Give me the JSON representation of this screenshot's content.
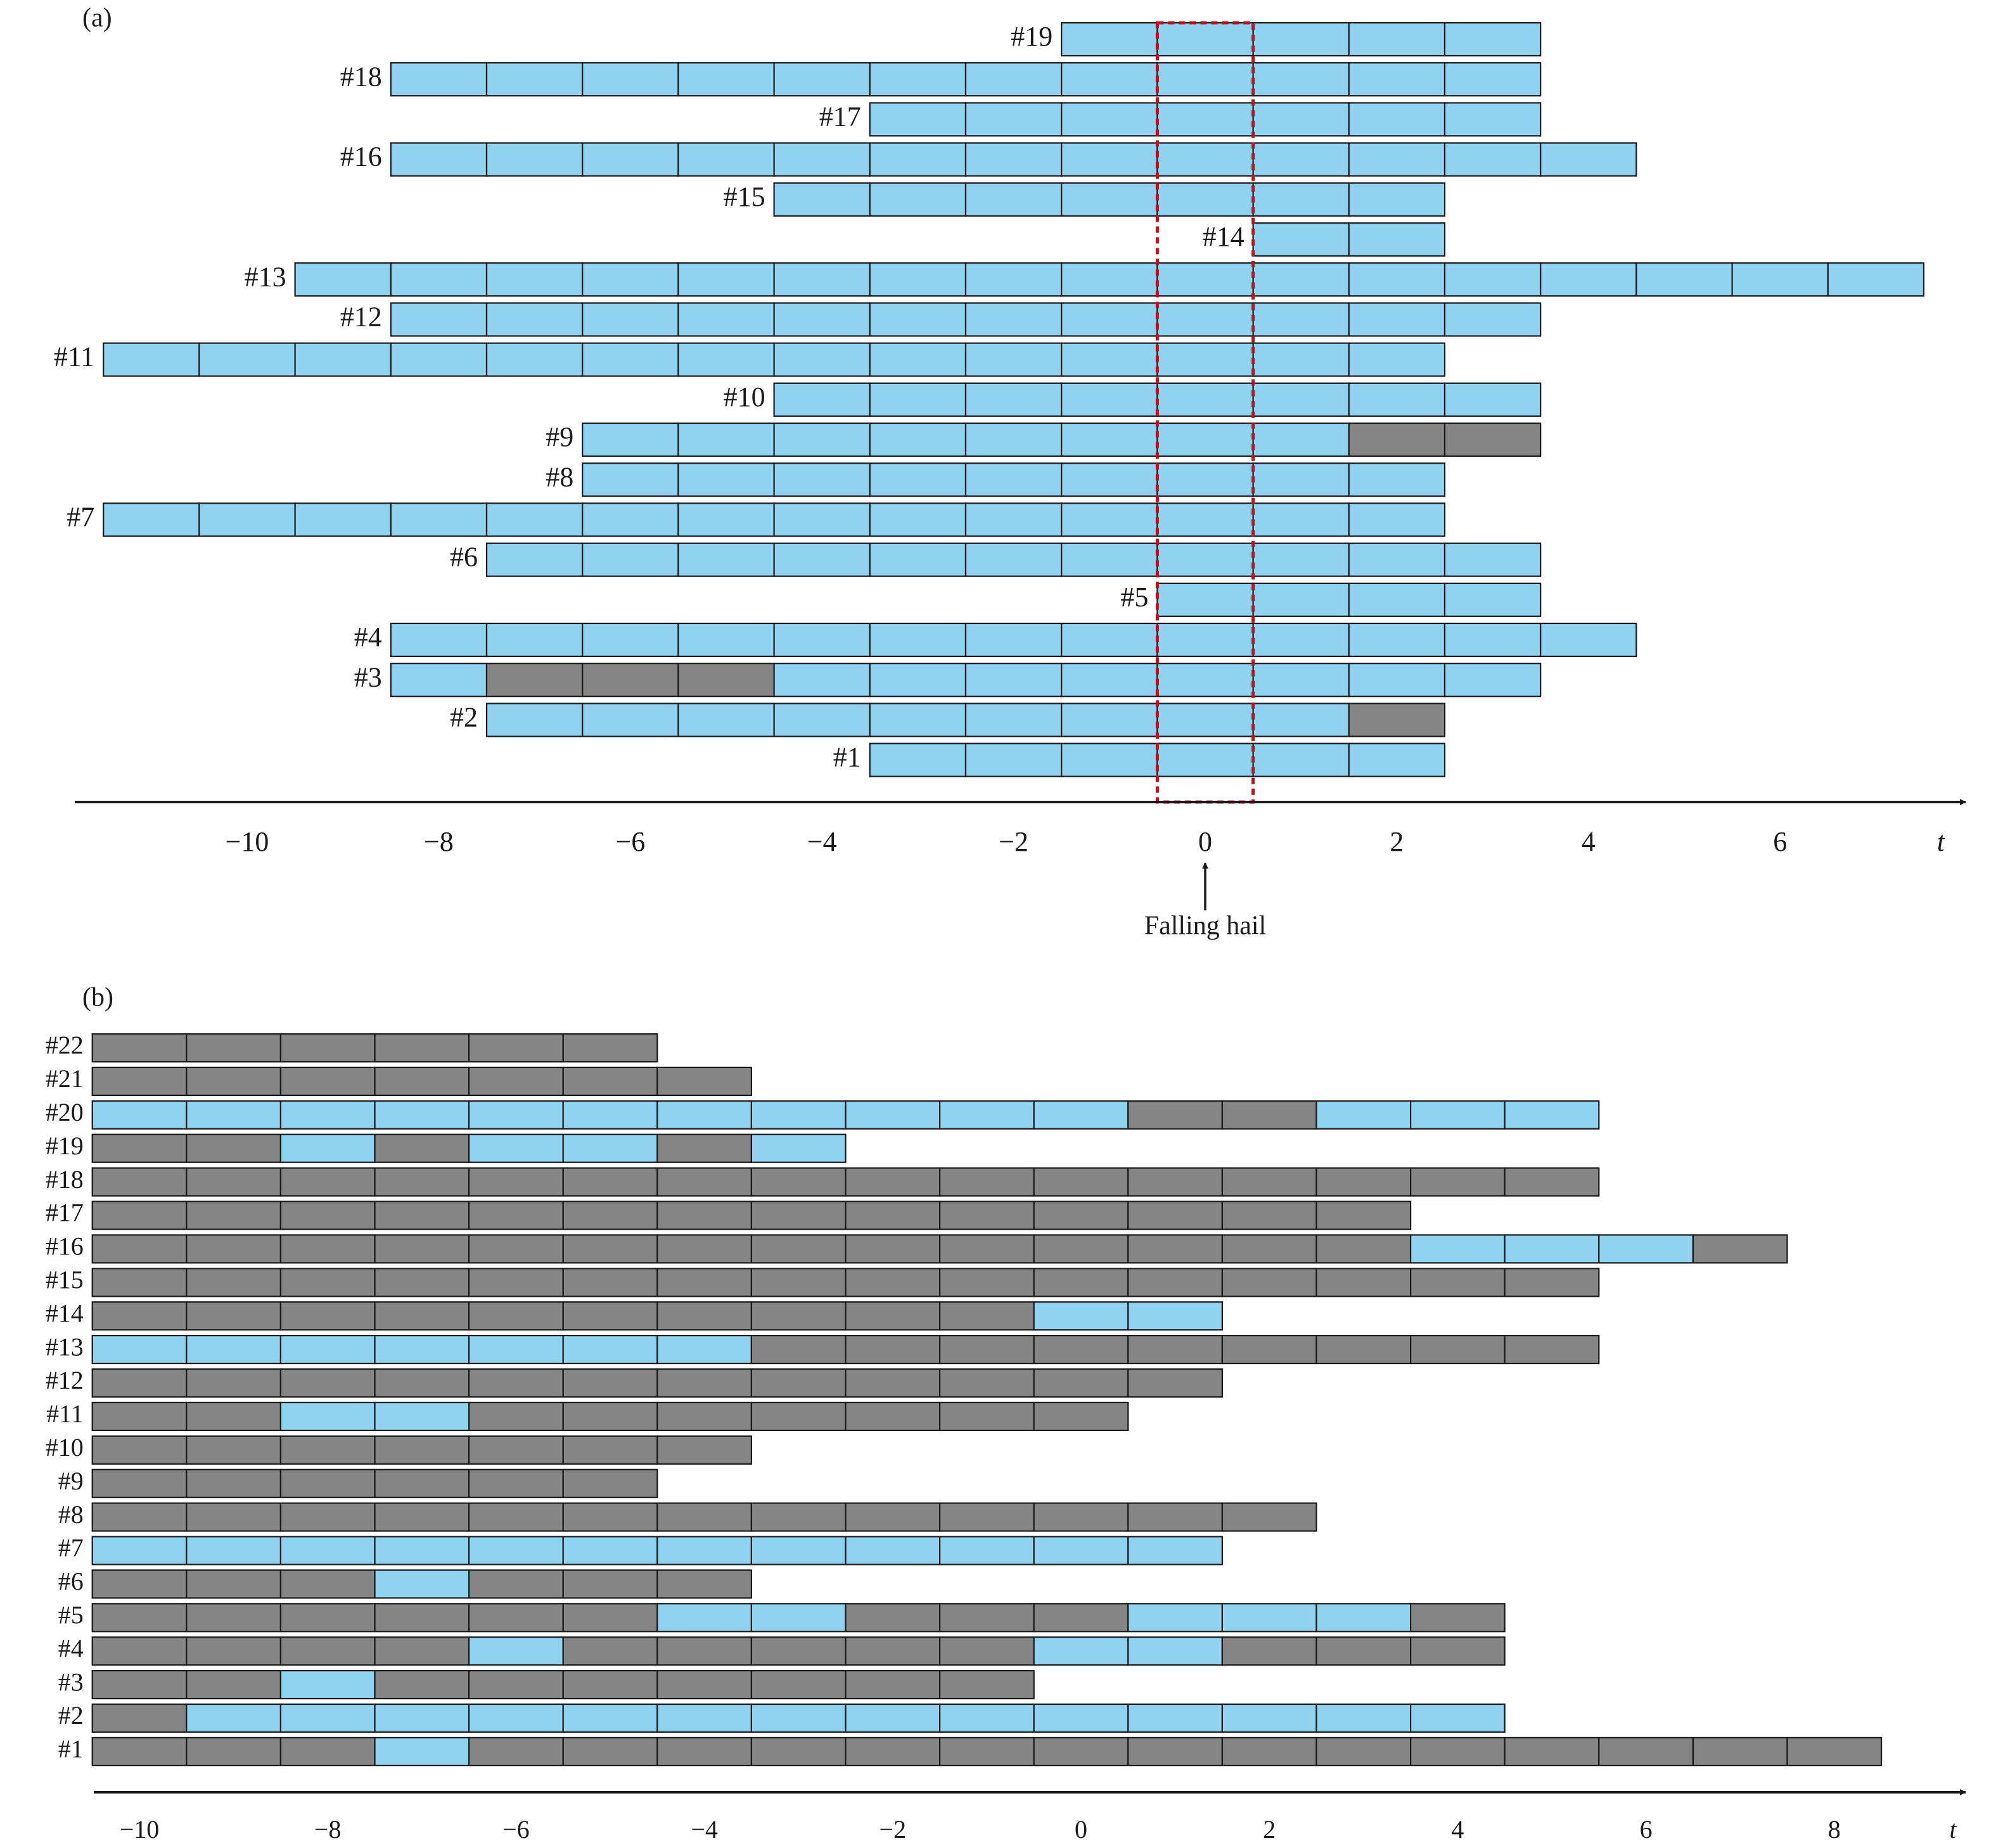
{
  "colors": {
    "light_cell": "#90d2ef",
    "dark_cell": "#858585",
    "cell_border": "#1a1a1a",
    "axis": "#1a1a1a",
    "highlight_box": "#c0101c"
  },
  "chart_data": [
    {
      "panel_label": "(a)",
      "type": "gantt",
      "x_axis": {
        "label": "t",
        "ticks": [
          -10,
          -8,
          -6,
          -4,
          -2,
          0,
          2,
          4,
          6
        ],
        "tick_labels": [
          "−10",
          "−8",
          "−6",
          "−4",
          "−2",
          "0",
          "2",
          "4",
          "6"
        ],
        "range": [
          -11.9,
          8.5
        ]
      },
      "highlight_window": {
        "from": -0.5,
        "to": 0.5
      },
      "annotation": {
        "text": "Falling hail",
        "x": 0
      },
      "tracks": [
        {
          "label": "#19",
          "start": -1.5,
          "cells": [
            "L",
            "L",
            "L",
            "L",
            "L"
          ]
        },
        {
          "label": "#18",
          "start": -8.5,
          "cells": [
            "L",
            "L",
            "L",
            "L",
            "L",
            "L",
            "L",
            "L",
            "L",
            "L",
            "L",
            "L"
          ]
        },
        {
          "label": "#17",
          "start": -3.5,
          "cells": [
            "L",
            "L",
            "L",
            "L",
            "L",
            "L",
            "L"
          ]
        },
        {
          "label": "#16",
          "start": -8.5,
          "cells": [
            "L",
            "L",
            "L",
            "L",
            "L",
            "L",
            "L",
            "L",
            "L",
            "L",
            "L",
            "L",
            "L"
          ]
        },
        {
          "label": "#15",
          "start": -4.5,
          "cells": [
            "L",
            "L",
            "L",
            "L",
            "L",
            "L",
            "L"
          ]
        },
        {
          "label": "#14",
          "start": 0.5,
          "cells": [
            "L",
            "L"
          ]
        },
        {
          "label": "#13",
          "start": -9.5,
          "cells": [
            "L",
            "L",
            "L",
            "L",
            "L",
            "L",
            "L",
            "L",
            "L",
            "L",
            "L",
            "L",
            "L",
            "L",
            "L",
            "L",
            "L"
          ]
        },
        {
          "label": "#12",
          "start": -8.5,
          "cells": [
            "L",
            "L",
            "L",
            "L",
            "L",
            "L",
            "L",
            "L",
            "L",
            "L",
            "L",
            "L"
          ]
        },
        {
          "label": "#11",
          "start": -11.5,
          "cells": [
            "L",
            "L",
            "L",
            "L",
            "L",
            "L",
            "L",
            "L",
            "L",
            "L",
            "L",
            "L",
            "L",
            "L"
          ]
        },
        {
          "label": "#10",
          "start": -4.5,
          "cells": [
            "L",
            "L",
            "L",
            "L",
            "L",
            "L",
            "L",
            "L"
          ]
        },
        {
          "label": "#9",
          "start": -6.5,
          "cells": [
            "L",
            "L",
            "L",
            "L",
            "L",
            "L",
            "L",
            "L",
            "D",
            "D"
          ]
        },
        {
          "label": "#8",
          "start": -6.5,
          "cells": [
            "L",
            "L",
            "L",
            "L",
            "L",
            "L",
            "L",
            "L",
            "L"
          ]
        },
        {
          "label": "#7",
          "start": -11.5,
          "cells": [
            "L",
            "L",
            "L",
            "L",
            "L",
            "L",
            "L",
            "L",
            "L",
            "L",
            "L",
            "L",
            "L",
            "L"
          ]
        },
        {
          "label": "#6",
          "start": -7.5,
          "cells": [
            "L",
            "L",
            "L",
            "L",
            "L",
            "L",
            "L",
            "L",
            "L",
            "L",
            "L"
          ]
        },
        {
          "label": "#5",
          "start": -0.5,
          "cells": [
            "L",
            "L",
            "L",
            "L"
          ]
        },
        {
          "label": "#4",
          "start": -8.5,
          "cells": [
            "L",
            "L",
            "L",
            "L",
            "L",
            "L",
            "L",
            "L",
            "L",
            "L",
            "L",
            "L",
            "L"
          ]
        },
        {
          "label": "#3",
          "start": -8.5,
          "cells": [
            "L",
            "D",
            "D",
            "D",
            "L",
            "L",
            "L",
            "L",
            "L",
            "L",
            "L",
            "L"
          ]
        },
        {
          "label": "#2",
          "start": -7.5,
          "cells": [
            "L",
            "L",
            "L",
            "L",
            "L",
            "L",
            "L",
            "L",
            "L",
            "D"
          ]
        },
        {
          "label": "#1",
          "start": -3.5,
          "cells": [
            "L",
            "L",
            "L",
            "L",
            "L",
            "L"
          ]
        }
      ]
    },
    {
      "panel_label": "(b)",
      "type": "gantt",
      "x_axis": {
        "label": "t",
        "ticks": [
          -10,
          -8,
          -6,
          -4,
          -2,
          0,
          2,
          4,
          6,
          8
        ],
        "tick_labels": [
          "−10",
          "−8",
          "−6",
          "−4",
          "−2",
          "0",
          "2",
          "4",
          "6",
          "8"
        ],
        "range": [
          -10.5,
          9.5
        ]
      },
      "tracks": [
        {
          "label": "#22",
          "start": -10.5,
          "cells": [
            "D",
            "D",
            "D",
            "D",
            "D",
            "D"
          ]
        },
        {
          "label": "#21",
          "start": -10.5,
          "cells": [
            "D",
            "D",
            "D",
            "D",
            "D",
            "D",
            "D"
          ]
        },
        {
          "label": "#20",
          "start": -10.5,
          "cells": [
            "L",
            "L",
            "L",
            "L",
            "L",
            "L",
            "L",
            "L",
            "L",
            "L",
            "L",
            "D",
            "D",
            "L",
            "L",
            "L"
          ]
        },
        {
          "label": "#19",
          "start": -10.5,
          "cells": [
            "D",
            "D",
            "L",
            "D",
            "L",
            "L",
            "D",
            "L"
          ]
        },
        {
          "label": "#18",
          "start": -10.5,
          "cells": [
            "D",
            "D",
            "D",
            "D",
            "D",
            "D",
            "D",
            "D",
            "D",
            "D",
            "D",
            "D",
            "D",
            "D",
            "D",
            "D"
          ]
        },
        {
          "label": "#17",
          "start": -10.5,
          "cells": [
            "D",
            "D",
            "D",
            "D",
            "D",
            "D",
            "D",
            "D",
            "D",
            "D",
            "D",
            "D",
            "D",
            "D"
          ]
        },
        {
          "label": "#16",
          "start": -10.5,
          "cells": [
            "D",
            "D",
            "D",
            "D",
            "D",
            "D",
            "D",
            "D",
            "D",
            "D",
            "D",
            "D",
            "D",
            "D",
            "L",
            "L",
            "L",
            "D"
          ]
        },
        {
          "label": "#15",
          "start": -10.5,
          "cells": [
            "D",
            "D",
            "D",
            "D",
            "D",
            "D",
            "D",
            "D",
            "D",
            "D",
            "D",
            "D",
            "D",
            "D",
            "D",
            "D"
          ]
        },
        {
          "label": "#14",
          "start": -10.5,
          "cells": [
            "D",
            "D",
            "D",
            "D",
            "D",
            "D",
            "D",
            "D",
            "D",
            "D",
            "L",
            "L"
          ]
        },
        {
          "label": "#13",
          "start": -10.5,
          "cells": [
            "L",
            "L",
            "L",
            "L",
            "L",
            "L",
            "L",
            "D",
            "D",
            "D",
            "D",
            "D",
            "D",
            "D",
            "D",
            "D"
          ]
        },
        {
          "label": "#12",
          "start": -10.5,
          "cells": [
            "D",
            "D",
            "D",
            "D",
            "D",
            "D",
            "D",
            "D",
            "D",
            "D",
            "D",
            "D"
          ]
        },
        {
          "label": "#11",
          "start": -10.5,
          "cells": [
            "D",
            "D",
            "L",
            "L",
            "D",
            "D",
            "D",
            "D",
            "D",
            "D",
            "D"
          ]
        },
        {
          "label": "#10",
          "start": -10.5,
          "cells": [
            "D",
            "D",
            "D",
            "D",
            "D",
            "D",
            "D"
          ]
        },
        {
          "label": "#9",
          "start": -10.5,
          "cells": [
            "D",
            "D",
            "D",
            "D",
            "D",
            "D"
          ]
        },
        {
          "label": "#8",
          "start": -10.5,
          "cells": [
            "D",
            "D",
            "D",
            "D",
            "D",
            "D",
            "D",
            "D",
            "D",
            "D",
            "D",
            "D",
            "D"
          ]
        },
        {
          "label": "#7",
          "start": -10.5,
          "cells": [
            "L",
            "L",
            "L",
            "L",
            "L",
            "L",
            "L",
            "L",
            "L",
            "L",
            "L",
            "L"
          ]
        },
        {
          "label": "#6",
          "start": -10.5,
          "cells": [
            "D",
            "D",
            "D",
            "L",
            "D",
            "D",
            "D"
          ]
        },
        {
          "label": "#5",
          "start": -10.5,
          "cells": [
            "D",
            "D",
            "D",
            "D",
            "D",
            "D",
            "L",
            "L",
            "D",
            "D",
            "D",
            "L",
            "L",
            "L",
            "D"
          ]
        },
        {
          "label": "#4",
          "start": -10.5,
          "cells": [
            "D",
            "D",
            "D",
            "D",
            "L",
            "D",
            "D",
            "D",
            "D",
            "D",
            "L",
            "L",
            "D",
            "D",
            "D"
          ]
        },
        {
          "label": "#3",
          "start": -10.5,
          "cells": [
            "D",
            "D",
            "L",
            "D",
            "D",
            "D",
            "D",
            "D",
            "D",
            "D"
          ]
        },
        {
          "label": "#2",
          "start": -10.5,
          "cells": [
            "D",
            "L",
            "L",
            "L",
            "L",
            "L",
            "L",
            "L",
            "L",
            "L",
            "L",
            "L",
            "L",
            "L",
            "L"
          ]
        },
        {
          "label": "#1",
          "start": -10.5,
          "cells": [
            "D",
            "D",
            "D",
            "L",
            "D",
            "D",
            "D",
            "D",
            "D",
            "D",
            "D",
            "D",
            "D",
            "D",
            "D",
            "D",
            "D",
            "D",
            "D"
          ]
        }
      ]
    }
  ]
}
